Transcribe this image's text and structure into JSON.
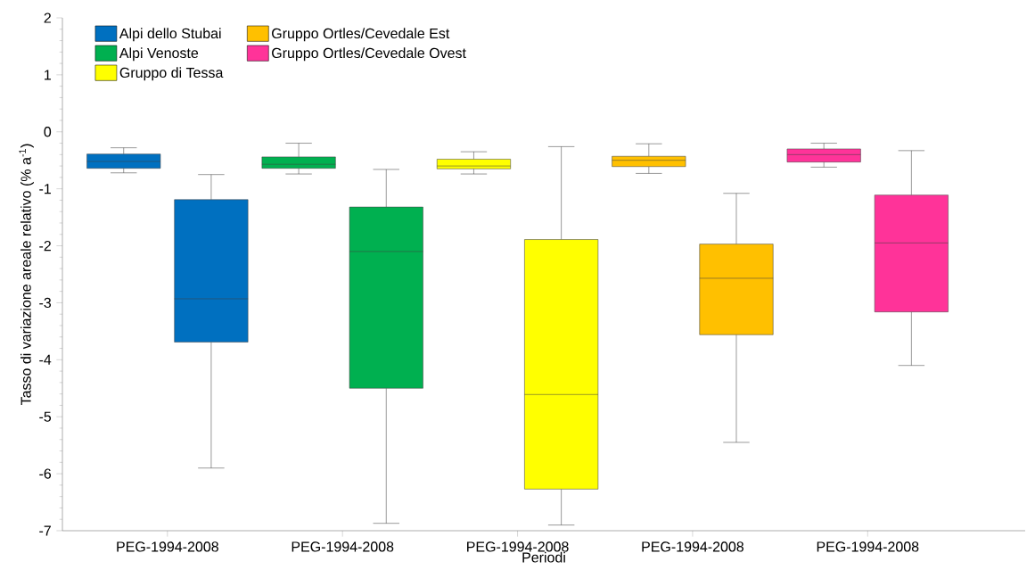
{
  "chart_data": {
    "type": "box",
    "xlabel": "Periodi",
    "ylabel": "Tasso di variazione areale relativo (% a$^{-1}$)",
    "categories": [
      "PEG-1994-2008",
      "PEG-1994-2008",
      "PEG-1994-2008",
      "PEG-1994-2008",
      "PEG-1994-2008"
    ],
    "ylim": [
      -7,
      2
    ],
    "yticks": [
      -7,
      -6,
      -5,
      -4,
      -3,
      -2,
      -1,
      0,
      1,
      2
    ],
    "grid": false,
    "legend": "top left",
    "series": [
      {
        "name": "Alpi dello Stubai",
        "color": "#0070c0",
        "boxes": [
          {
            "low": -0.72,
            "q1": -0.64,
            "median": -0.52,
            "q3": -0.39,
            "high": -0.28
          },
          null,
          null,
          null,
          null
        ]
      },
      {
        "color": "#0070c0",
        "boxes": [
          {
            "low": -5.9,
            "q1": -3.69,
            "median": -2.93,
            "q3": -1.19,
            "high": -0.75
          },
          null,
          null,
          null,
          null
        ]
      },
      {
        "name": "Alpi Venoste",
        "color": "#00b050",
        "boxes": [
          null,
          {
            "low": -0.74,
            "q1": -0.64,
            "median": -0.57,
            "q3": -0.44,
            "high": -0.2
          },
          null,
          null,
          null
        ]
      },
      {
        "color": "#00b050",
        "boxes": [
          null,
          {
            "low": -6.87,
            "q1": -4.5,
            "median": -2.1,
            "q3": -1.32,
            "high": -0.66
          },
          null,
          null,
          null
        ]
      },
      {
        "name": "Gruppo di Tessa",
        "color": "#ffff00",
        "boxes": [
          null,
          null,
          {
            "low": -0.74,
            "q1": -0.65,
            "median": -0.6,
            "q3": -0.48,
            "high": -0.35
          },
          null,
          null
        ]
      },
      {
        "color": "#ffff00",
        "boxes": [
          null,
          null,
          {
            "low": -6.9,
            "q1": -6.27,
            "median": -4.61,
            "q3": -1.89,
            "high": -0.26
          },
          null,
          null
        ]
      },
      {
        "name": "Gruppo Ortles/Cevedale Est",
        "color": "#ffc000",
        "boxes": [
          null,
          null,
          null,
          {
            "low": -0.73,
            "q1": -0.61,
            "median": -0.5,
            "q3": -0.43,
            "high": -0.21
          },
          null
        ]
      },
      {
        "color": "#ffc000",
        "boxes": [
          null,
          null,
          null,
          {
            "low": -5.45,
            "q1": -3.56,
            "median": -2.57,
            "q3": -1.97,
            "high": -1.08
          },
          null
        ]
      },
      {
        "name": "Gruppo Ortles/Cevedale Ovest",
        "color": "#ff3399",
        "boxes": [
          null,
          null,
          null,
          null,
          {
            "low": -0.62,
            "q1": -0.53,
            "median": -0.4,
            "q3": -0.3,
            "high": -0.2
          }
        ]
      },
      {
        "color": "#ff3399",
        "boxes": [
          null,
          null,
          null,
          null,
          {
            "low": -4.1,
            "q1": -3.16,
            "median": -1.95,
            "q3": -1.11,
            "high": -0.33
          }
        ]
      }
    ]
  }
}
